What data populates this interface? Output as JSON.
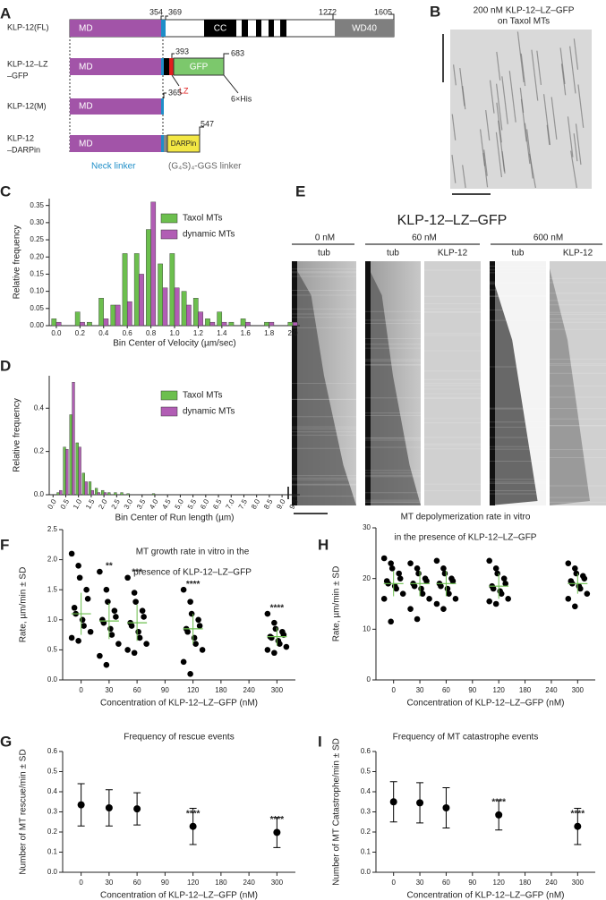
{
  "panels": [
    "A",
    "B",
    "C",
    "D",
    "E",
    "F",
    "G",
    "H",
    "I"
  ],
  "diagram": {
    "constructs": [
      {
        "name_lines": [
          "KLP-12(FL)"
        ],
        "domains": [
          "MD",
          "CC",
          "WD40"
        ],
        "positions": [
          354,
          369,
          1272,
          1605
        ]
      },
      {
        "name_lines": [
          "KLP-12–LZ",
          "–GFP"
        ],
        "domains": [
          "MD",
          "GFP"
        ],
        "positions": [
          393,
          683
        ],
        "tags": [
          "LZ",
          "6×His"
        ]
      },
      {
        "name_lines": [
          "KLP-12(M)"
        ],
        "domains": [
          "MD"
        ],
        "positions": [
          365
        ]
      },
      {
        "name_lines": [
          "KLP-12",
          "–DARPin"
        ],
        "domains": [
          "MD",
          "DARPin"
        ],
        "positions": [
          547
        ]
      }
    ],
    "linkers": [
      "Neck linker",
      "(G₄S)₄-GGS linker"
    ]
  },
  "kymograph_b": {
    "title_lines": [
      "200 nM KLP-12–LZ–GFP",
      "on Taxol MTs"
    ]
  },
  "kymograph_e": {
    "title": "KLP-12–LZ–GFP",
    "groups": [
      {
        "label": "0 nM",
        "lanes": [
          "tub"
        ]
      },
      {
        "label": "60 nM",
        "lanes": [
          "tub",
          "KLP-12"
        ]
      },
      {
        "label": "600 nM",
        "lanes": [
          "tub",
          "KLP-12"
        ]
      }
    ]
  },
  "chart_data": [
    {
      "type": "bar",
      "xlabel": "Bin Center of Velocity (µm/sec)",
      "ylabel": "Relative frequency",
      "x": [
        0.0,
        0.1,
        0.2,
        0.3,
        0.4,
        0.5,
        0.6,
        0.7,
        0.8,
        0.9,
        1.0,
        1.1,
        1.2,
        1.3,
        1.4,
        1.5,
        1.6,
        1.7,
        1.8,
        1.9,
        2.0
      ],
      "series": [
        {
          "name": "Taxol MTs",
          "color": "#6cbf4e",
          "values": [
            0.02,
            0.0,
            0.04,
            0.01,
            0.08,
            0.06,
            0.21,
            0.21,
            0.28,
            0.18,
            0.21,
            0.1,
            0.08,
            0.02,
            0.04,
            0.01,
            0.02,
            0.0,
            0.01,
            0.0,
            0.01
          ]
        },
        {
          "name": "dynamic MTs",
          "color": "#b15db4",
          "values": [
            0.01,
            0.0,
            0.01,
            0.0,
            0.02,
            0.06,
            0.07,
            0.15,
            0.36,
            0.11,
            0.11,
            0.06,
            0.04,
            0.01,
            0.01,
            0.0,
            0.01,
            0.0,
            0.01,
            0.0,
            0.01
          ]
        }
      ],
      "xlim": [
        -0.06,
        2.06
      ],
      "xticks": [
        {
          "value": 0,
          "label": "0.0"
        },
        0.2,
        0.4,
        0.6,
        0.8,
        {
          "value": 1,
          "label": "1.0"
        },
        1.2,
        1.4,
        1.6,
        1.8,
        {
          "value": 2,
          "label": "2.0"
        }
      ],
      "ylim": [
        0,
        0.37
      ],
      "yticks": [
        {
          "value": 0,
          "label": "0.00"
        },
        0.05,
        {
          "value": 0.1,
          "label": "0.10"
        },
        0.15,
        {
          "value": 0.2,
          "label": "0.20"
        },
        0.25,
        {
          "value": 0.3,
          "label": "0.30"
        },
        0.35
      ],
      "legend": "upper right"
    },
    {
      "type": "bar",
      "xlabel": "Bin Center of Run length (µm)",
      "ylabel": "Relative frequency",
      "x": [
        0.25,
        0.5,
        0.75,
        1.0,
        1.25,
        1.5,
        1.75,
        2.0,
        2.25,
        2.5,
        2.75,
        3.0,
        3.5,
        4.0
      ],
      "series": [
        {
          "name": "Taxol MTs",
          "color": "#6cbf4e",
          "values": [
            0.01,
            0.22,
            0.37,
            0.24,
            0.1,
            0.06,
            0.03,
            0.02,
            0.01,
            0.01,
            0.01,
            0.005,
            0.0,
            0.005
          ]
        },
        {
          "name": "dynamic MTs",
          "color": "#b15db4",
          "values": [
            0.02,
            0.21,
            0.52,
            0.22,
            0.06,
            0.02,
            0.01,
            0.01,
            0.0,
            0.0,
            0.0,
            0.0,
            0.0,
            0.0
          ]
        }
      ],
      "xlim": [
        -0.15,
        9.7
      ],
      "xticks": [
        {
          "value": 0,
          "label": "0.0"
        },
        0.5,
        {
          "value": 1,
          "label": "1.0"
        },
        1.5,
        {
          "value": 2,
          "label": "2.0"
        },
        2.5,
        {
          "value": 3,
          "label": "3.0"
        },
        3.5,
        {
          "value": 4,
          "label": "4.0"
        },
        4.5,
        {
          "value": 5,
          "label": "5.0"
        },
        5.5,
        {
          "value": 6,
          "label": "6.0"
        },
        6.5,
        {
          "value": 7,
          "label": "7.0"
        },
        7.5,
        {
          "value": 8,
          "label": "8.0"
        },
        8.5,
        {
          "value": 9,
          "label": "9.0"
        },
        9.5
      ],
      "ylim": [
        0,
        0.55
      ],
      "yticks": [
        {
          "value": 0,
          "label": "0.0"
        },
        0.2,
        0.4
      ],
      "legend": "upper right"
    },
    {
      "type": "swarm",
      "title_lines": [
        "MT growth rate in vitro in the",
        "presence of KLP-12–LZ–GFP"
      ],
      "xlabel": "Concentration of KLP-12–LZ–GFP (nM)",
      "ylabel": "Rate, µm/min ± SD",
      "categories": [
        "0",
        "30",
        "60",
        "90",
        "120",
        "180",
        "240",
        "300"
      ],
      "points": [
        [
          2.1,
          1.9,
          1.7,
          1.5,
          1.35,
          1.2,
          1.1,
          1.0,
          0.9,
          0.8,
          0.7,
          0.65
        ],
        [
          1.8,
          1.5,
          1.3,
          1.15,
          1.05,
          1.0,
          0.95,
          0.85,
          0.75,
          0.6,
          0.4,
          0.25
        ],
        [
          1.7,
          1.45,
          1.3,
          1.15,
          1.05,
          0.95,
          0.9,
          0.8,
          0.7,
          0.6,
          0.5,
          0.45
        ],
        null,
        [
          1.5,
          1.3,
          1.1,
          1.0,
          0.9,
          0.85,
          0.8,
          0.7,
          0.6,
          0.5,
          0.3,
          0.1
        ],
        null,
        null,
        [
          1.1,
          0.95,
          0.85,
          0.8,
          0.75,
          0.72,
          0.7,
          0.65,
          0.6,
          0.55,
          0.5,
          0.45
        ]
      ],
      "values": [
        1.1,
        0.98,
        0.95,
        null,
        0.85,
        null,
        null,
        0.72
      ],
      "errors": [
        0.35,
        0.3,
        0.3,
        null,
        0.25,
        null,
        null,
        0.15
      ],
      "annotations": [
        null,
        "**",
        "***",
        null,
        "****",
        null,
        null,
        "****"
      ],
      "point_color": "#000000",
      "color": "#6cbf4e",
      "ylim": [
        0,
        2.5
      ],
      "yticks": [
        {
          "value": 0,
          "label": "0.0"
        },
        0.5,
        {
          "value": 1,
          "label": "1.0"
        },
        1.5,
        {
          "value": 2,
          "label": "2.0"
        },
        2.5
      ]
    },
    {
      "type": "errorbar",
      "title_lines": [
        "Frequency of rescue events"
      ],
      "xlabel": "Concentration of KLP-12–LZ–GFP (nM)",
      "ylabel": "Number of MT rescue/min ± SD",
      "categories": [
        "0",
        "30",
        "60",
        "90",
        "120",
        "180",
        "240",
        "300"
      ],
      "values": [
        0.335,
        0.32,
        0.315,
        null,
        0.228,
        null,
        null,
        0.198
      ],
      "errors": [
        0.105,
        0.09,
        0.08,
        null,
        0.09,
        null,
        null,
        0.075
      ],
      "annotations": [
        null,
        null,
        null,
        null,
        "****",
        null,
        null,
        "****"
      ],
      "color": "#000000",
      "ylim": [
        0,
        0.6
      ],
      "yticks": [
        {
          "value": 0,
          "label": "0.0"
        },
        0.1,
        0.2,
        0.3,
        0.4,
        0.5,
        0.6
      ]
    },
    {
      "type": "swarm",
      "title_lines": [
        "MT depolymerization rate in vitro",
        "in the presence of KLP-12–LZ–GFP"
      ],
      "xlabel": "Concentration of KLP-12–LZ–GFP (nM)",
      "ylabel": "Rate, µm/min ± SD",
      "categories": [
        "0",
        "30",
        "60",
        "90",
        "120",
        "180",
        "240",
        "300"
      ],
      "points": [
        [
          24,
          23,
          22,
          21,
          20,
          19.5,
          19,
          18.5,
          18,
          17,
          16,
          11.5
        ],
        [
          23,
          22,
          21,
          20,
          19.5,
          19,
          18.5,
          18,
          17,
          16,
          14,
          12
        ],
        [
          23.5,
          22,
          21,
          20,
          19.5,
          19,
          18.5,
          18,
          17,
          16,
          15,
          14
        ],
        null,
        [
          23.5,
          22,
          21,
          20,
          19,
          18.5,
          18,
          17.5,
          17,
          16,
          15.5,
          15
        ],
        null,
        null,
        [
          23,
          22,
          21,
          20.5,
          20,
          19.5,
          19,
          18.5,
          18,
          17,
          16,
          14.5
        ]
      ],
      "values": [
        19,
        19,
        19,
        null,
        18.5,
        null,
        null,
        19
      ],
      "errors": [
        2.5,
        2.5,
        2.5,
        null,
        2.5,
        null,
        null,
        2
      ],
      "point_color": "#000000",
      "color": "#6cbf4e",
      "ylim": [
        0,
        30
      ],
      "yticks": [
        0,
        10,
        20,
        30
      ]
    },
    {
      "type": "errorbar",
      "title_lines": [
        "Frequency of MT catastrophe events"
      ],
      "xlabel": "Concentration of KLP-12–LZ–GFP (nM)",
      "ylabel": "Number of MT Catastrophe/min ± SD",
      "categories": [
        "0",
        "30",
        "60",
        "90",
        "120",
        "180",
        "240",
        "300"
      ],
      "values": [
        0.35,
        0.345,
        0.32,
        null,
        0.285,
        null,
        null,
        0.228
      ],
      "errors": [
        0.1,
        0.1,
        0.1,
        null,
        0.075,
        null,
        null,
        0.09
      ],
      "annotations": [
        null,
        null,
        null,
        null,
        "****",
        null,
        null,
        "****"
      ],
      "color": "#000000",
      "ylim": [
        0,
        0.6
      ],
      "yticks": [
        {
          "value": 0,
          "label": "0.0"
        },
        0.1,
        0.2,
        0.3,
        0.4,
        0.5,
        0.6
      ]
    }
  ]
}
